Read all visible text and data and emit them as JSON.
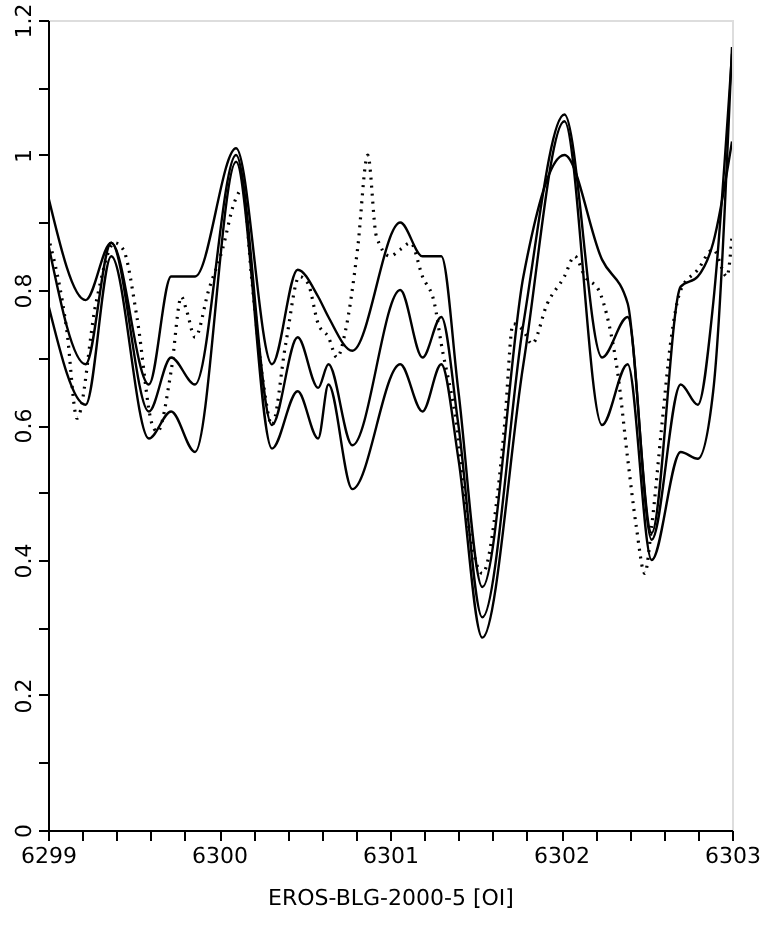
{
  "chart_data": {
    "type": "line",
    "xlabel": "EROS-BLG-2000-5 [OI]",
    "xlim": [
      6299,
      6303
    ],
    "ylim": [
      0,
      1.2
    ],
    "xticks": [
      6299,
      {
        "value": 6299.2,
        "label": null
      },
      {
        "value": 6299.4,
        "label": null
      },
      {
        "value": 6299.6,
        "label": null
      },
      {
        "value": 6299.8,
        "label": null
      },
      6300,
      {
        "value": 6300.2,
        "label": null
      },
      {
        "value": 6300.4,
        "label": null
      },
      {
        "value": 6300.6,
        "label": null
      },
      {
        "value": 6300.8,
        "label": null
      },
      6301,
      {
        "value": 6301.2,
        "label": null
      },
      {
        "value": 6301.4,
        "label": null
      },
      {
        "value": 6301.6,
        "label": null
      },
      {
        "value": 6301.8,
        "label": null
      },
      6302,
      {
        "value": 6302.2,
        "label": null
      },
      {
        "value": 6302.4,
        "label": null
      },
      {
        "value": 6302.6,
        "label": null
      },
      {
        "value": 6302.8,
        "label": null
      },
      6303
    ],
    "yticks": [
      0,
      {
        "value": 0.1,
        "label": null
      },
      0.2,
      {
        "value": 0.3,
        "label": null
      },
      0.4,
      {
        "value": 0.5,
        "label": null
      },
      0.6,
      {
        "value": 0.7,
        "label": null
      },
      0.8,
      {
        "value": 0.9,
        "label": null
      },
      1,
      {
        "value": 1.1,
        "label": null
      },
      1.2
    ],
    "grid": false,
    "marker": "none",
    "x": [
      6299.0,
      6299.22,
      6299.37,
      6299.59,
      6299.72,
      6299.86,
      6300.1,
      6300.31,
      6300.46,
      6300.58,
      6300.64,
      6300.78,
      6301.06,
      6301.19,
      6301.3,
      6301.4,
      6301.54,
      6301.78,
      6302.02,
      6302.24,
      6302.39,
      6302.53,
      6302.7,
      6302.8,
      6302.89,
      6303.0
    ],
    "series": [
      {
        "color": "#000000",
        "line_style": "solid",
        "values": [
          0.94,
          0.785,
          0.87,
          0.66,
          0.82,
          0.82,
          1.01,
          0.69,
          0.83,
          0.79,
          0.76,
          0.71,
          0.9,
          0.85,
          0.85,
          0.65,
          0.36,
          0.82,
          1.0,
          0.845,
          0.78,
          0.44,
          0.805,
          0.82,
          0.87,
          1.02
        ]
      },
      {
        "color": "#000000",
        "line_style": "solid",
        "values": [
          0.87,
          0.69,
          0.87,
          0.62,
          0.7,
          0.66,
          1.0,
          0.6,
          0.73,
          0.655,
          0.69,
          0.57,
          0.8,
          0.7,
          0.76,
          0.6,
          0.315,
          0.75,
          1.06,
          0.7,
          0.76,
          0.43,
          0.66,
          0.63,
          0.78,
          1.15
        ]
      },
      {
        "color": "#000000",
        "line_style": "solid",
        "values": [
          0.78,
          0.63,
          0.85,
          0.58,
          0.62,
          0.56,
          0.99,
          0.565,
          0.65,
          0.58,
          0.66,
          0.505,
          0.69,
          0.62,
          0.69,
          0.55,
          0.285,
          0.69,
          1.05,
          0.6,
          0.69,
          0.4,
          0.56,
          0.55,
          0.65,
          1.16
        ]
      },
      {
        "color": "#000000",
        "line_style": "dotted",
        "x": [
          6299.0,
          6299.11,
          6299.17,
          6299.28,
          6299.39,
          6299.44,
          6299.52,
          6299.61,
          6299.64,
          6299.72,
          6299.78,
          6299.81,
          6299.86,
          6299.94,
          6300.02,
          6300.09,
          6300.14,
          6300.19,
          6300.26,
          6300.31,
          6300.39,
          6300.47,
          6300.52,
          6300.58,
          6300.64,
          6300.69,
          6300.74,
          6300.81,
          6300.87,
          6300.92,
          6301.0,
          6301.06,
          6301.12,
          6301.19,
          6301.26,
          6301.3,
          6301.39,
          6301.46,
          6301.54,
          6301.63,
          6301.67,
          6301.72,
          6301.78,
          6301.83,
          6301.92,
          6302.02,
          6302.08,
          6302.14,
          6302.22,
          6302.28,
          6302.33,
          6302.39,
          6302.44,
          6302.49,
          6302.53,
          6302.59,
          6302.64,
          6302.7,
          6302.8,
          6302.89,
          6302.97,
          6303.0
        ],
        "values": [
          0.88,
          0.74,
          0.61,
          0.78,
          0.87,
          0.86,
          0.76,
          0.6,
          0.59,
          0.68,
          0.79,
          0.77,
          0.73,
          0.8,
          0.86,
          0.93,
          0.95,
          0.82,
          0.66,
          0.6,
          0.72,
          0.82,
          0.81,
          0.75,
          0.73,
          0.7,
          0.74,
          0.86,
          1.0,
          0.88,
          0.85,
          0.86,
          0.87,
          0.82,
          0.78,
          0.72,
          0.6,
          0.45,
          0.38,
          0.5,
          0.6,
          0.75,
          0.74,
          0.72,
          0.78,
          0.82,
          0.85,
          0.82,
          0.8,
          0.75,
          0.68,
          0.55,
          0.45,
          0.38,
          0.45,
          0.6,
          0.72,
          0.8,
          0.83,
          0.86,
          0.82,
          0.88
        ]
      }
    ]
  }
}
